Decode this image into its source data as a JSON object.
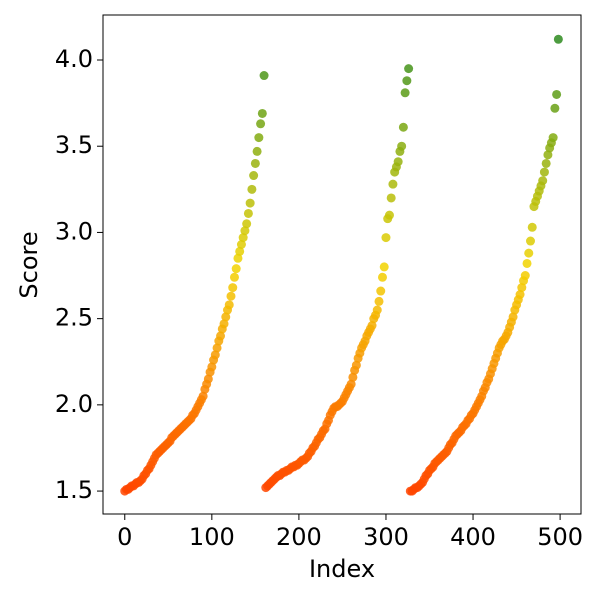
{
  "chart_data": {
    "type": "scatter",
    "x_label": "Index",
    "y_label": "Score",
    "xlim": [
      -25,
      524
    ],
    "ylim": [
      1.367,
      4.261
    ],
    "xticks": [
      0,
      100,
      200,
      300,
      400,
      500
    ],
    "yticks": [
      1.5,
      {
        "value": 2,
        "label": "2.0"
      },
      2.5,
      {
        "value": 3,
        "label": "3.0"
      },
      3.5,
      {
        "value": 4,
        "label": "4.0"
      }
    ],
    "colormap": [
      "#ff4500",
      "#f2d400",
      "#2e8b1e"
    ],
    "series": [
      {
        "x": [
          0,
          2,
          4,
          6,
          8,
          10,
          12,
          14,
          16,
          18,
          20,
          22,
          24,
          26,
          28,
          30,
          32,
          34,
          36,
          38,
          40,
          42,
          44,
          46,
          48,
          50,
          52,
          54,
          56,
          58,
          60,
          62,
          64,
          66,
          68,
          70,
          72,
          74,
          76,
          78,
          80,
          82,
          84,
          86,
          88,
          90,
          92,
          94,
          96,
          98,
          100,
          102,
          104,
          106,
          108,
          110,
          112,
          114,
          116,
          118,
          120,
          122,
          124,
          126,
          128,
          130,
          132,
          134,
          136,
          138,
          140,
          142,
          144,
          146,
          148,
          150,
          152,
          154,
          156,
          158,
          160,
          162,
          164,
          166,
          168,
          170,
          172,
          174,
          176,
          178,
          180,
          182,
          184,
          186,
          188,
          190,
          192,
          194,
          196,
          198,
          200,
          202,
          204,
          206,
          208,
          210,
          212,
          214,
          216,
          218,
          220,
          222,
          224,
          226,
          228,
          230,
          232,
          234,
          236,
          238,
          240,
          242,
          244,
          246,
          248,
          250,
          252,
          254,
          256,
          258,
          260,
          262,
          264,
          266,
          268,
          270,
          272,
          274,
          276,
          278,
          280,
          282,
          284,
          286,
          288,
          290,
          292,
          294,
          296,
          298,
          300,
          302,
          304,
          306,
          308,
          310,
          312,
          314,
          316,
          318,
          320,
          322,
          324,
          326,
          328,
          330,
          332,
          334,
          336,
          338,
          340,
          342,
          344,
          346,
          348,
          350,
          352,
          354,
          356,
          358,
          360,
          362,
          364,
          366,
          368,
          370,
          372,
          374,
          376,
          378,
          380,
          382,
          384,
          386,
          388,
          390,
          392,
          394,
          396,
          398,
          400,
          402,
          404,
          406,
          408,
          410,
          412,
          414,
          416,
          418,
          420,
          422,
          424,
          426,
          428,
          430,
          432,
          434,
          436,
          438,
          440,
          442,
          444,
          446,
          448,
          450,
          452,
          454,
          456,
          458,
          460,
          462,
          464,
          466,
          468,
          470,
          472,
          474,
          476,
          478,
          480,
          482,
          484,
          486,
          488,
          490,
          492,
          494,
          496,
          498
        ],
        "values": [
          1.5,
          1.51,
          1.51,
          1.52,
          1.53,
          1.53,
          1.54,
          1.55,
          1.55,
          1.56,
          1.57,
          1.59,
          1.6,
          1.62,
          1.63,
          1.65,
          1.67,
          1.69,
          1.71,
          1.72,
          1.73,
          1.74,
          1.75,
          1.76,
          1.77,
          1.78,
          1.79,
          1.81,
          1.82,
          1.83,
          1.84,
          1.85,
          1.86,
          1.87,
          1.88,
          1.89,
          1.9,
          1.91,
          1.92,
          1.94,
          1.95,
          1.97,
          1.99,
          2.01,
          2.03,
          2.05,
          2.09,
          2.12,
          2.15,
          2.19,
          2.22,
          2.26,
          2.29,
          2.33,
          2.37,
          2.4,
          2.44,
          2.47,
          2.51,
          2.55,
          2.58,
          2.63,
          2.68,
          2.74,
          2.79,
          2.85,
          2.89,
          2.93,
          2.97,
          3.01,
          3.05,
          3.11,
          3.17,
          3.25,
          3.33,
          3.4,
          3.47,
          3.55,
          3.63,
          3.69,
          3.91,
          1.52,
          1.53,
          1.54,
          1.55,
          1.56,
          1.57,
          1.58,
          1.59,
          1.59,
          1.6,
          1.61,
          1.61,
          1.62,
          1.62,
          1.63,
          1.64,
          1.64,
          1.65,
          1.65,
          1.66,
          1.67,
          1.68,
          1.68,
          1.69,
          1.7,
          1.72,
          1.73,
          1.75,
          1.76,
          1.78,
          1.8,
          1.81,
          1.83,
          1.85,
          1.86,
          1.89,
          1.91,
          1.94,
          1.96,
          1.98,
          1.99,
          1.99,
          2.0,
          2.01,
          2.02,
          2.04,
          2.06,
          2.08,
          2.1,
          2.12,
          2.16,
          2.2,
          2.23,
          2.27,
          2.3,
          2.33,
          2.35,
          2.37,
          2.4,
          2.42,
          2.44,
          2.46,
          2.5,
          2.52,
          2.55,
          2.6,
          2.66,
          2.74,
          2.8,
          2.97,
          3.08,
          3.1,
          3.2,
          3.28,
          3.35,
          3.38,
          3.41,
          3.47,
          3.5,
          3.61,
          3.81,
          3.88,
          3.95,
          1.5,
          1.5,
          1.51,
          1.52,
          1.52,
          1.53,
          1.54,
          1.55,
          1.57,
          1.59,
          1.6,
          1.62,
          1.63,
          1.64,
          1.66,
          1.67,
          1.68,
          1.69,
          1.7,
          1.71,
          1.72,
          1.73,
          1.75,
          1.77,
          1.78,
          1.8,
          1.82,
          1.83,
          1.84,
          1.85,
          1.87,
          1.88,
          1.89,
          1.91,
          1.92,
          1.94,
          1.95,
          1.97,
          1.99,
          2.01,
          2.03,
          2.05,
          2.08,
          2.1,
          2.13,
          2.15,
          2.18,
          2.21,
          2.24,
          2.27,
          2.3,
          2.33,
          2.35,
          2.37,
          2.38,
          2.4,
          2.42,
          2.45,
          2.48,
          2.51,
          2.55,
          2.58,
          2.61,
          2.64,
          2.68,
          2.72,
          2.75,
          2.82,
          2.88,
          2.95,
          3.03,
          3.15,
          3.18,
          3.21,
          3.24,
          3.27,
          3.3,
          3.35,
          3.4,
          3.45,
          3.49,
          3.52,
          3.55,
          3.72,
          3.8,
          4.12
        ]
      }
    ]
  }
}
